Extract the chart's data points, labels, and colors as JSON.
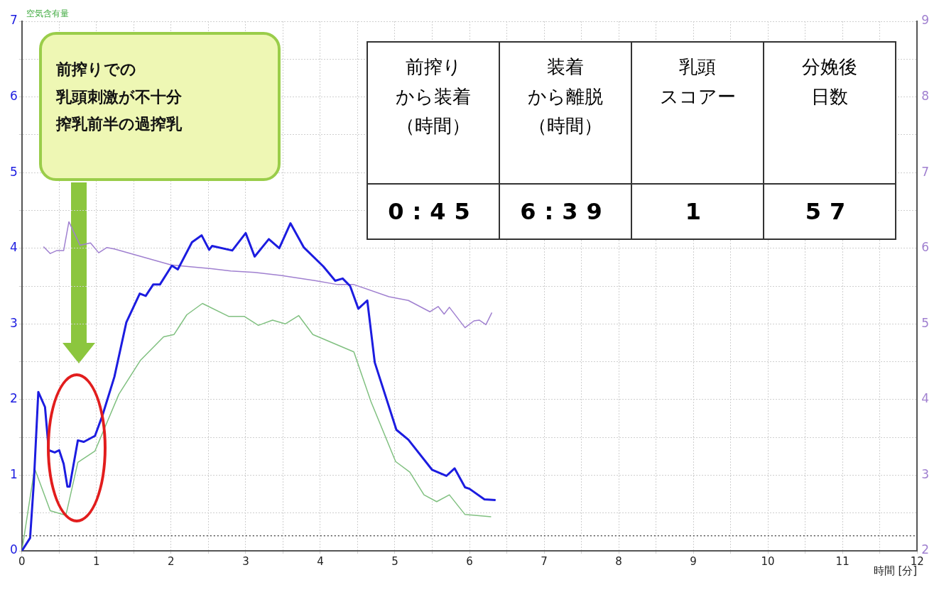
{
  "chart_data": {
    "type": "line",
    "ylabel": "空気含有量",
    "xlabel": "時間 [分]",
    "annotations": [
      "前搾りでの",
      "乳頭刺激が不十分",
      "搾乳前半の過搾乳",
      "前搾り",
      "から装着",
      "（時間）",
      "装着",
      "から離脱",
      "（時間）",
      "乳頭",
      "スコアー",
      "分娩後",
      "日数",
      "0:45",
      "6:39",
      "1",
      "57"
    ],
    "xlim": [
      0,
      12
    ],
    "xticks": [
      0,
      {
        "value": 0.5,
        "label": null
      },
      1,
      {
        "value": 1.5,
        "label": null
      },
      2,
      {
        "value": 2.5,
        "label": null
      },
      3,
      {
        "value": 3.5,
        "label": null
      },
      4,
      {
        "value": 4.5,
        "label": null
      },
      5,
      {
        "value": 5.5,
        "label": null
      },
      6,
      {
        "value": 6.5,
        "label": null
      },
      7,
      {
        "value": 7.5,
        "label": null
      },
      8,
      {
        "value": 8.5,
        "label": null
      },
      9,
      {
        "value": 9.5,
        "label": null
      },
      10,
      {
        "value": 10.5,
        "label": null
      },
      11,
      {
        "value": 11.5,
        "label": null
      },
      12
    ],
    "ylim": [
      0,
      7
    ],
    "yticks": [
      0,
      {
        "value": 0.5,
        "label": null
      },
      1,
      {
        "value": 1.5,
        "label": null
      },
      2,
      {
        "value": 2.5,
        "label": null
      },
      3,
      {
        "value": 3.5,
        "label": null
      },
      4,
      {
        "value": 4.5,
        "label": null
      },
      5,
      {
        "value": 5.5,
        "label": null
      },
      6,
      {
        "value": 6.5,
        "label": null
      },
      7
    ],
    "y2lim": [
      2,
      9
    ],
    "y2ticks": [
      2,
      3,
      4,
      5,
      6,
      7,
      8,
      9
    ],
    "grid": true,
    "legend": false,
    "ref_lines": [
      {
        "axis": "y",
        "value": 0.2,
        "color": "#555555",
        "line_style": "dotted"
      }
    ],
    "series": [
      {
        "color": "#1c1ce0",
        "x": [
          0,
          0.11,
          0.16,
          0.22,
          0.31,
          0.36,
          0.44,
          0.5,
          0.56,
          0.61,
          0.64,
          0.75,
          0.83,
          0.98,
          1.08,
          1.24,
          1.4,
          1.58,
          1.66,
          1.76,
          1.85,
          2.01,
          2.09,
          2.28,
          2.41,
          2.51,
          2.55,
          2.82,
          3.0,
          3.12,
          3.31,
          3.45,
          3.6,
          3.78,
          4.04,
          4.2,
          4.3,
          4.4,
          4.51,
          4.63,
          4.73,
          5.02,
          5.18,
          5.5,
          5.69,
          5.8,
          5.94,
          6.0,
          6.2,
          6.35
        ],
        "values": [
          0,
          0.17,
          0.9,
          2.1,
          1.9,
          1.33,
          1.3,
          1.33,
          1.15,
          0.85,
          0.85,
          1.46,
          1.44,
          1.52,
          1.79,
          2.3,
          3.02,
          3.4,
          3.37,
          3.52,
          3.52,
          3.77,
          3.72,
          4.08,
          4.17,
          3.98,
          4.03,
          3.97,
          4.2,
          3.89,
          4.12,
          4.0,
          4.33,
          4.01,
          3.76,
          3.57,
          3.6,
          3.5,
          3.2,
          3.31,
          2.49,
          1.6,
          1.47,
          1.07,
          0.99,
          1.09,
          0.84,
          0.82,
          0.68,
          0.67
        ]
      },
      {
        "color": "#80c080",
        "x": [
          0,
          0.17,
          0.38,
          0.59,
          0.75,
          0.98,
          1.3,
          1.59,
          1.9,
          2.04,
          2.21,
          2.42,
          2.77,
          2.98,
          3.17,
          3.36,
          3.53,
          3.71,
          3.9,
          4.45,
          4.68,
          5.01,
          5.2,
          5.39,
          5.56,
          5.73,
          5.94,
          6.29
        ],
        "values": [
          0,
          1.09,
          0.53,
          0.47,
          1.17,
          1.32,
          2.07,
          2.52,
          2.83,
          2.86,
          3.12,
          3.27,
          3.1,
          3.1,
          2.98,
          3.05,
          3.0,
          3.11,
          2.86,
          2.63,
          1.97,
          1.18,
          1.04,
          0.74,
          0.65,
          0.74,
          0.48,
          0.45
        ]
      },
      {
        "color": "#a080d0",
        "axis": "y2",
        "x": [
          0.29,
          0.38,
          0.47,
          0.56,
          0.63,
          0.78,
          0.92,
          1.03,
          1.14,
          1.24,
          2.0,
          2.54,
          2.8,
          3.12,
          3.47,
          3.94,
          4.23,
          4.45,
          4.92,
          5.18,
          5.47,
          5.58,
          5.66,
          5.73,
          5.94,
          6.06,
          6.13,
          6.22,
          6.3
        ],
        "values": [
          6.02,
          5.93,
          5.97,
          5.97,
          6.35,
          6.04,
          6.07,
          5.94,
          6.01,
          5.99,
          5.78,
          5.73,
          5.7,
          5.68,
          5.64,
          5.57,
          5.52,
          5.52,
          5.36,
          5.31,
          5.16,
          5.23,
          5.13,
          5.22,
          4.95,
          5.04,
          5.05,
          4.99,
          5.15
        ]
      }
    ]
  }
}
